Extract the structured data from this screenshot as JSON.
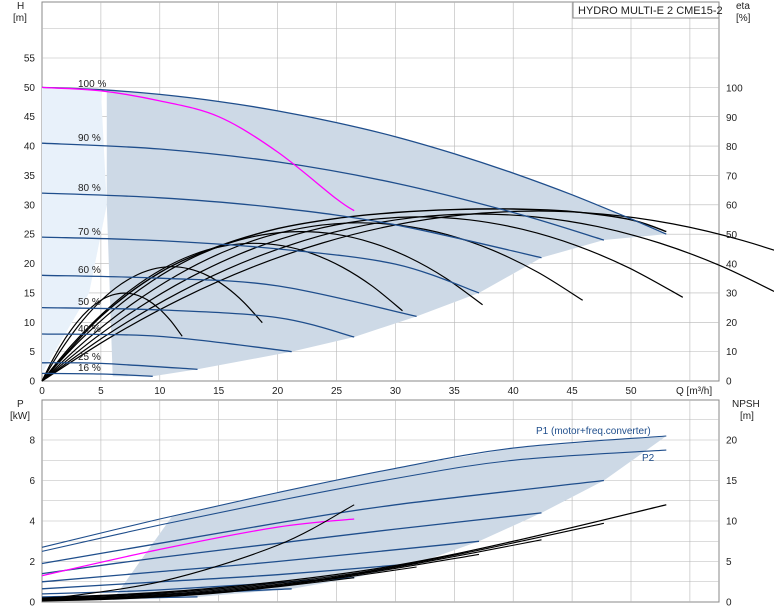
{
  "title": "HYDRO MULTI-E 2 CME15-2",
  "colors": {
    "area": "#cdd9e6",
    "area_light": "#e8f1fa",
    "curve_blue": "#1f4e8c",
    "curve_thin": "#1f4e8c",
    "eff_black": "#000000",
    "duty_magenta": "#ff00ff",
    "grid": "#b8b8b8"
  },
  "upper_axes": {
    "left_title": "H",
    "left_unit": "[m]",
    "right_title": "eta",
    "right_unit": "[%]",
    "x_unit_label": "Q [m³/h]",
    "h_ticks": [
      "0",
      "5",
      "10",
      "15",
      "20",
      "25",
      "30",
      "35",
      "40",
      "45",
      "50",
      "55"
    ],
    "eta_ticks": [
      "0",
      "10",
      "20",
      "30",
      "40",
      "50",
      "60",
      "70",
      "80",
      "90",
      "100"
    ],
    "q_ticks": [
      "0",
      "5",
      "10",
      "15",
      "20",
      "25",
      "30",
      "35",
      "40",
      "45",
      "50"
    ]
  },
  "lower_axes": {
    "left_title": "P",
    "left_unit": "[kW]",
    "right_title": "NPSH",
    "right_unit": "[m]",
    "p_ticks": [
      "0",
      "2",
      "4",
      "6",
      "8"
    ],
    "npsh_ticks": [
      "0",
      "5",
      "10",
      "15",
      "20"
    ],
    "p1_label": "P1 (motor+freq.converter)",
    "p2_label": "P2"
  },
  "speed_labels": [
    "100 %",
    "90 %",
    "80 %",
    "70 %",
    "60 %",
    "50 %",
    "40 %",
    "25 %",
    "16 %"
  ],
  "chart_data": [
    {
      "type": "line",
      "panel": "head_efficiency",
      "title": "HYDRO MULTI-E 2 CME15-2",
      "xlabel": "Q [m³/h]",
      "ylabel": "H [m]",
      "ylabel_right": "eta [%]",
      "xlim": [
        0,
        55
      ],
      "ylim": [
        0,
        60
      ],
      "ylim_right": [
        0,
        120
      ],
      "grid": true,
      "head_curves": [
        {
          "name": "100 %",
          "x": [
            0,
            5,
            10,
            15,
            20,
            25,
            30,
            35,
            40,
            45,
            50,
            53
          ],
          "y": [
            50,
            49.6,
            48.8,
            47.6,
            46,
            44,
            41.6,
            38.7,
            35.4,
            31.7,
            27.6,
            25
          ]
        },
        {
          "name": "90 %",
          "x": [
            0,
            10,
            20,
            30,
            40,
            47.7
          ],
          "y": [
            40.5,
            39.5,
            37.3,
            33.7,
            28.7,
            24
          ]
        },
        {
          "name": "80 %",
          "x": [
            0,
            10,
            20,
            30,
            42.4
          ],
          "y": [
            32,
            31.2,
            29.5,
            26.6,
            21
          ]
        },
        {
          "name": "70 %",
          "x": [
            0,
            10,
            20,
            30,
            37.1
          ],
          "y": [
            24.5,
            23.9,
            22.5,
            19.9,
            15
          ]
        },
        {
          "name": "60 %",
          "x": [
            0,
            10,
            20,
            31.8
          ],
          "y": [
            18,
            17.5,
            16.2,
            11
          ]
        },
        {
          "name": "50 %",
          "x": [
            0,
            10,
            20,
            26.5
          ],
          "y": [
            12.5,
            12.1,
            10.8,
            7.5
          ]
        },
        {
          "name": "40 %",
          "x": [
            0,
            10,
            21.2
          ],
          "y": [
            8,
            7.6,
            5
          ]
        },
        {
          "name": "25 %",
          "x": [
            0,
            5,
            13.2
          ],
          "y": [
            3.1,
            3.0,
            2
          ]
        },
        {
          "name": "16 %",
          "x": [
            0,
            5,
            9.4
          ],
          "y": [
            1.3,
            1.2,
            0.8
          ]
        }
      ],
      "system_curve": {
        "x": [
          0,
          5,
          10,
          15,
          20,
          25,
          26.5
        ],
        "y": [
          50,
          49.4,
          47.7,
          45,
          39,
          31,
          29
        ]
      },
      "efficiency_curve_100": {
        "x": [
          0,
          5,
          10,
          15,
          20,
          25,
          30,
          35,
          40,
          45,
          50,
          53
        ],
        "eta": [
          0,
          22,
          37,
          46,
          52,
          55.5,
          57.5,
          58.5,
          58.7,
          57.8,
          55,
          51
        ]
      },
      "efficiency_peak_points": [
        {
          "speed": "90 %",
          "q": 42,
          "eta": 58
        },
        {
          "speed": "80 %",
          "q": 37,
          "eta": 57
        },
        {
          "speed": "70 %",
          "q": 32,
          "eta": 56
        },
        {
          "speed": "60 %",
          "q": 27,
          "eta": 54
        },
        {
          "speed": "50 %",
          "q": 22,
          "eta": 51
        },
        {
          "speed": "40 %",
          "q": 18,
          "eta": 47
        },
        {
          "speed": "25 %",
          "q": 11,
          "eta": 39
        },
        {
          "speed": "16 %",
          "q": 7,
          "eta": 30
        }
      ]
    },
    {
      "type": "line",
      "panel": "power_npsh",
      "xlabel": "Q [m³/h]",
      "ylabel": "P [kW]",
      "ylabel_right": "NPSH [m]",
      "xlim": [
        0,
        55
      ],
      "ylim": [
        0,
        9
      ],
      "ylim_right": [
        0,
        22.5
      ],
      "grid": true,
      "power_curves": [
        {
          "name": "P1 (motor+freq.converter)",
          "x": [
            0,
            10,
            20,
            30,
            40,
            53
          ],
          "y": [
            2.7,
            4.1,
            5.4,
            6.6,
            7.6,
            8.2
          ]
        },
        {
          "name": "P2",
          "x": [
            0,
            10,
            20,
            30,
            40,
            53
          ],
          "y": [
            2.5,
            3.8,
            5.0,
            6.1,
            7.0,
            7.5
          ]
        },
        {
          "x": [
            0,
            10,
            20,
            30,
            47.7
          ],
          "y": [
            1.9,
            2.9,
            3.9,
            4.8,
            6.0
          ]
        },
        {
          "x": [
            0,
            10,
            20,
            30,
            42.4
          ],
          "y": [
            1.4,
            2.2,
            2.9,
            3.6,
            4.4
          ]
        },
        {
          "x": [
            0,
            10,
            20,
            37.1
          ],
          "y": [
            1.0,
            1.5,
            2.0,
            3.0
          ]
        },
        {
          "x": [
            0,
            10,
            20,
            31.8
          ],
          "y": [
            0.65,
            1.0,
            1.35,
            1.9
          ]
        },
        {
          "x": [
            0,
            10,
            26.5
          ],
          "y": [
            0.4,
            0.6,
            1.2
          ]
        },
        {
          "x": [
            0,
            10,
            21.2
          ],
          "y": [
            0.25,
            0.38,
            0.65
          ]
        },
        {
          "x": [
            0,
            13.2
          ],
          "y": [
            0.12,
            0.25
          ]
        }
      ],
      "duty_power_curve": {
        "x": [
          0,
          10,
          20,
          26.5
        ],
        "y": [
          1.3,
          2.6,
          3.7,
          4.1
        ]
      },
      "npsh_curve_100": {
        "x": [
          0,
          10,
          20,
          30,
          40,
          53
        ],
        "npsh": [
          0.5,
          1.2,
          2.5,
          4.5,
          7.5,
          12
        ]
      }
    }
  ]
}
